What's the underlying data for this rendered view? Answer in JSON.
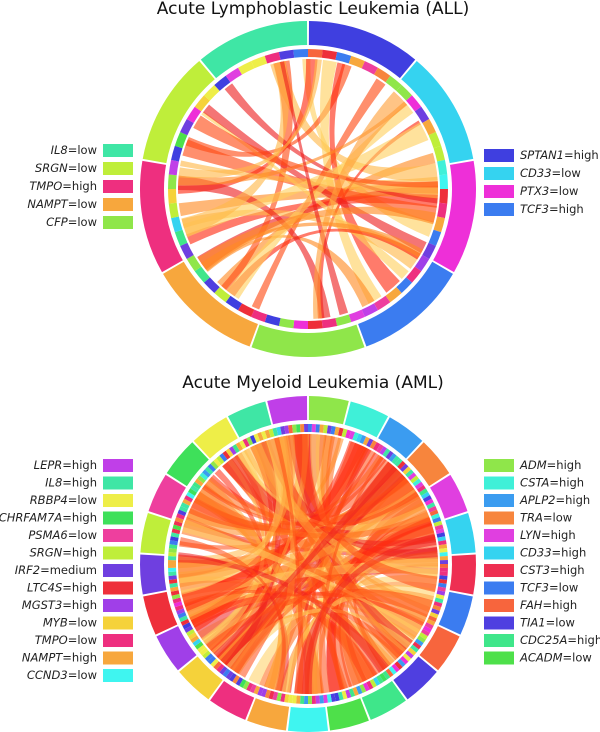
{
  "panels": [
    {
      "title": "Acute Lymphoblastic Leukemia (ALL)",
      "left_legend": [
        {
          "gene": "IL8",
          "level": "low",
          "color": "#3fe6a5"
        },
        {
          "gene": "SRGN",
          "level": "low",
          "color": "#bfee3a"
        },
        {
          "gene": "TMPO",
          "level": "high",
          "color": "#ee2f7f"
        },
        {
          "gene": "NAMPT",
          "level": "low",
          "color": "#f7a73d"
        },
        {
          "gene": "CFP",
          "level": "low",
          "color": "#8fe64a"
        }
      ],
      "right_legend": [
        {
          "gene": "SPTAN1",
          "level": "high",
          "color": "#3f3fe0"
        },
        {
          "gene": "CD33",
          "level": "low",
          "color": "#35d3f0"
        },
        {
          "gene": "PTX3",
          "level": "low",
          "color": "#ee2fd8"
        },
        {
          "gene": "TCF3",
          "level": "high",
          "color": "#3b7cf0"
        }
      ]
    },
    {
      "title": "Acute Myeloid Leukemia (AML)",
      "left_legend": [
        {
          "gene": "LEPR",
          "level": "high",
          "color": "#c03fe8"
        },
        {
          "gene": "IL8",
          "level": "high",
          "color": "#3fe6a5"
        },
        {
          "gene": "RBBP4",
          "level": "low",
          "color": "#eeee48"
        },
        {
          "gene": "CHRFAM7A",
          "level": "high",
          "color": "#3ee05a"
        },
        {
          "gene": "PSMA6",
          "level": "low",
          "color": "#ee3f9e"
        },
        {
          "gene": "SRGN",
          "level": "high",
          "color": "#bfee3a"
        },
        {
          "gene": "IRF2",
          "level": "medium",
          "color": "#6f3fe0"
        },
        {
          "gene": "LTC4S",
          "level": "high",
          "color": "#ee2f3a"
        },
        {
          "gene": "MGST3",
          "level": "high",
          "color": "#a03fe8"
        },
        {
          "gene": "MYB",
          "level": "low",
          "color": "#f5d23a"
        },
        {
          "gene": "TMPO",
          "level": "low",
          "color": "#ee2f7f"
        },
        {
          "gene": "NAMPT",
          "level": "high",
          "color": "#f7a73d"
        },
        {
          "gene": "CCND3",
          "level": "low",
          "color": "#3ff5f0"
        }
      ],
      "right_legend": [
        {
          "gene": "ADM",
          "level": "high",
          "color": "#8fe64a"
        },
        {
          "gene": "CSTA",
          "level": "high",
          "color": "#3ff0d8"
        },
        {
          "gene": "APLP2",
          "level": "high",
          "color": "#3b9cf0"
        },
        {
          "gene": "TRA",
          "level": "low",
          "color": "#f7853d"
        },
        {
          "gene": "LYN",
          "level": "high",
          "color": "#e03fe0"
        },
        {
          "gene": "CD33",
          "level": "high",
          "color": "#35d3f0"
        },
        {
          "gene": "CST3",
          "level": "high",
          "color": "#ee2f52"
        },
        {
          "gene": "TCF3",
          "level": "low",
          "color": "#3b7cf0"
        },
        {
          "gene": "FAH",
          "level": "high",
          "color": "#f7653d"
        },
        {
          "gene": "TIA1",
          "level": "low",
          "color": "#4f3fe0"
        },
        {
          "gene": "CDC25A",
          "level": "high",
          "color": "#3fe68a"
        },
        {
          "gene": "ACADM",
          "level": "low",
          "color": "#4ee04a"
        }
      ]
    }
  ]
}
